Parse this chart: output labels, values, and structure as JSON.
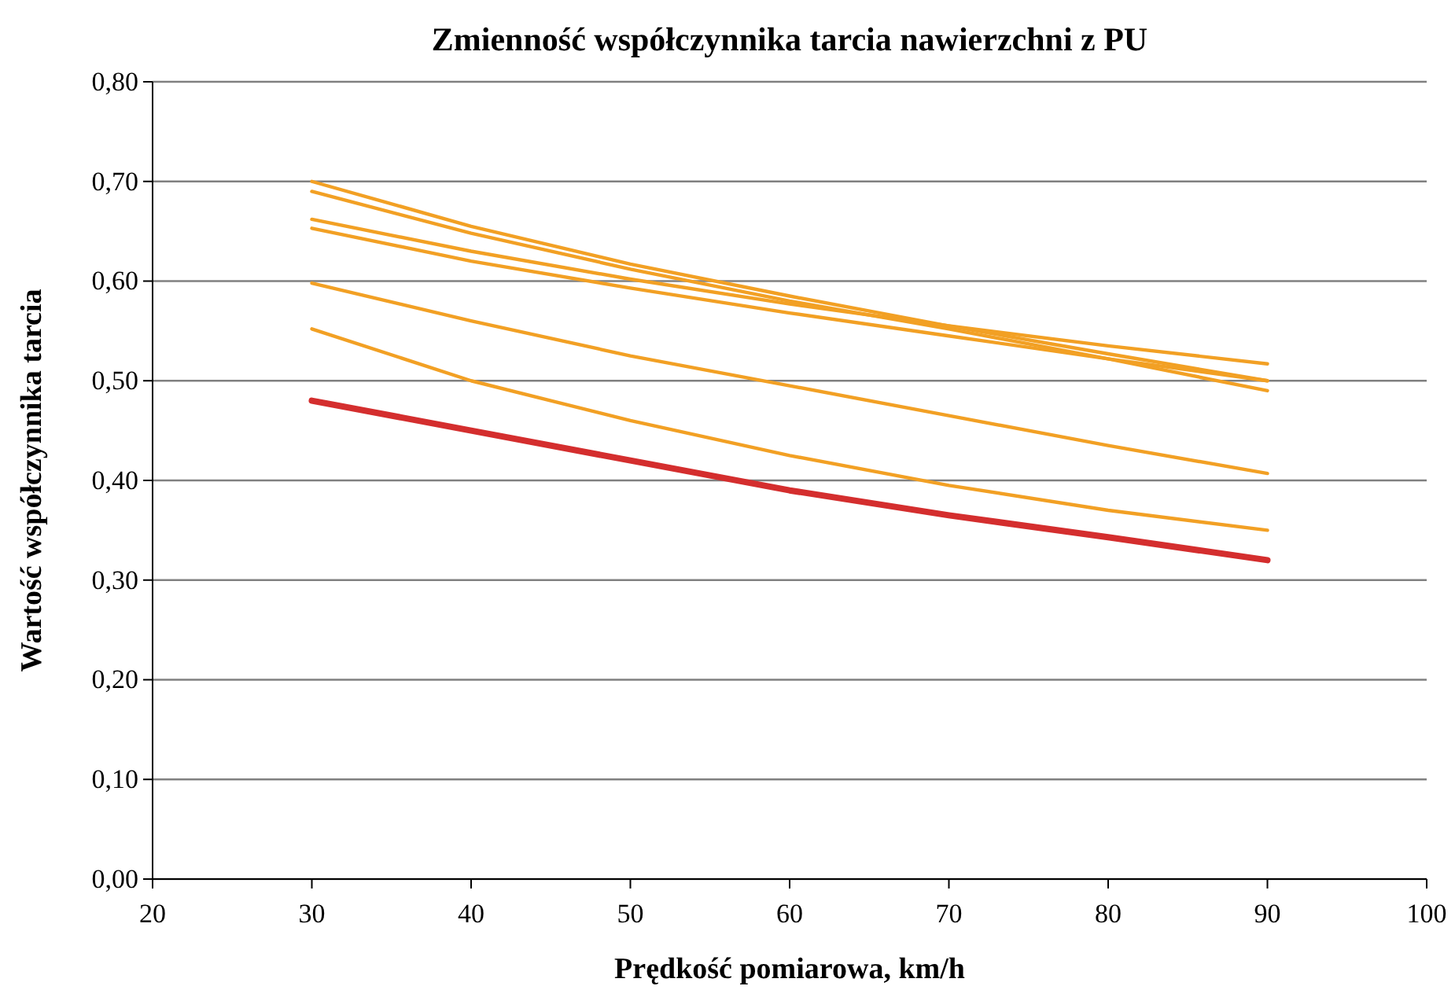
{
  "chart_data": {
    "type": "line",
    "title": "Zmienność współczynnika tarcia nawierzchni z PU",
    "xlabel": "Prędkość pomiarowa, km/h",
    "ylabel": "Wartość współczynnika tarcia",
    "x": [
      30,
      40,
      50,
      60,
      70,
      80,
      90
    ],
    "series": [
      {
        "color": "#f2a024",
        "values": [
          0.7,
          0.655,
          0.617,
          0.585,
          0.555,
          0.527,
          0.5
        ]
      },
      {
        "color": "#f2a024",
        "values": [
          0.69,
          0.648,
          0.612,
          0.58,
          0.552,
          0.522,
          0.49
        ]
      },
      {
        "color": "#f2a024",
        "values": [
          0.662,
          0.63,
          0.602,
          0.577,
          0.555,
          0.535,
          0.517
        ]
      },
      {
        "color": "#f2a024",
        "values": [
          0.653,
          0.62,
          0.593,
          0.568,
          0.545,
          0.522,
          0.5
        ]
      },
      {
        "color": "#f2a024",
        "values": [
          0.598,
          0.56,
          0.525,
          0.495,
          0.465,
          0.435,
          0.407
        ]
      },
      {
        "color": "#f2a024",
        "values": [
          0.552,
          0.5,
          0.46,
          0.425,
          0.395,
          0.37,
          0.35
        ]
      },
      {
        "color": "#d42e2e",
        "values": [
          0.48,
          0.45,
          0.42,
          0.39,
          0.365,
          0.343,
          0.32
        ]
      }
    ],
    "xlim": [
      20,
      100
    ],
    "xticks": [
      20,
      30,
      40,
      50,
      60,
      70,
      80,
      90,
      100
    ],
    "ylim": [
      0,
      0.8
    ],
    "yticks": [
      {
        "value": 0,
        "label": "0,00"
      },
      {
        "value": 0.1,
        "label": "0,10"
      },
      {
        "value": 0.2,
        "label": "0,20"
      },
      {
        "value": 0.3,
        "label": "0,30"
      },
      {
        "value": 0.4,
        "label": "0,40"
      },
      {
        "value": 0.5,
        "label": "0,50"
      },
      {
        "value": 0.6,
        "label": "0,60"
      },
      {
        "value": 0.7,
        "label": "0,70"
      },
      {
        "value": 0.8,
        "label": "0,80"
      }
    ],
    "grid": "y",
    "marker": "none",
    "line_style": "solid"
  }
}
